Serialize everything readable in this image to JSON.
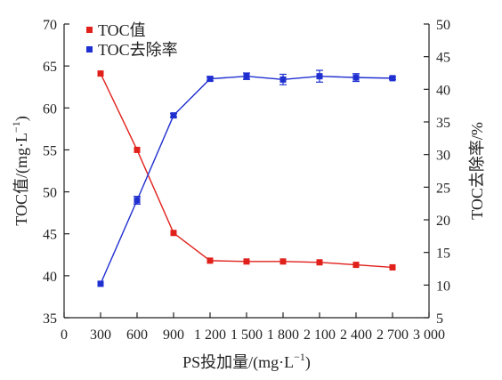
{
  "chart_data": {
    "type": "line",
    "xlabel": "PS投加量/(mg·L",
    "xlabel_sup": "−1",
    "xlabel_close": ")",
    "ylabel_left": "TOC值/(mg·L",
    "ylabel_left_sup": "−1",
    "ylabel_left_close": ")",
    "ylabel_right": "TOC去除率/%",
    "xlim": [
      0,
      3000
    ],
    "ylim_left": [
      35,
      70
    ],
    "ylim_right": [
      5,
      50
    ],
    "x_ticks": [
      0,
      300,
      600,
      900,
      1200,
      1500,
      1800,
      2100,
      2400,
      2700,
      3000
    ],
    "x_tick_labels": [
      "0",
      "300",
      "600",
      "900",
      "1 200",
      "1 500",
      "1 800",
      "2 100",
      "2 400",
      "2 700",
      "3 000"
    ],
    "y_left_ticks": [
      35,
      40,
      45,
      50,
      55,
      60,
      65,
      70
    ],
    "y_left_tick_labels": [
      "35",
      "40",
      "45",
      "50",
      "55",
      "60",
      "65",
      "70"
    ],
    "y_right_ticks": [
      5,
      10,
      15,
      20,
      25,
      30,
      35,
      40,
      45,
      50
    ],
    "y_right_tick_labels": [
      "5",
      "10",
      "15",
      "20",
      "25",
      "30",
      "35",
      "40",
      "45",
      "50"
    ],
    "legend_position": "top-left",
    "grid": false,
    "series": [
      {
        "name": "TOC值",
        "axis": "left",
        "color": "#e0201b",
        "marker": "square",
        "x": [
          300,
          600,
          900,
          1200,
          1500,
          1800,
          2100,
          2400,
          2700
        ],
        "values": [
          64.1,
          55.0,
          45.1,
          41.8,
          41.7,
          41.7,
          41.6,
          41.3,
          41.0
        ]
      },
      {
        "name": "TOC去除率",
        "axis": "right",
        "color": "#1f2fd0",
        "marker": "square",
        "x": [
          300,
          600,
          900,
          1200,
          1500,
          1800,
          2100,
          2400,
          2700
        ],
        "values": [
          10.2,
          23.0,
          36.0,
          41.6,
          42.0,
          41.5,
          42.0,
          41.8,
          41.7
        ],
        "errors": [
          0,
          0.6,
          0.3,
          0.3,
          0.5,
          0.8,
          0.9,
          0.6,
          0.2
        ]
      }
    ]
  }
}
